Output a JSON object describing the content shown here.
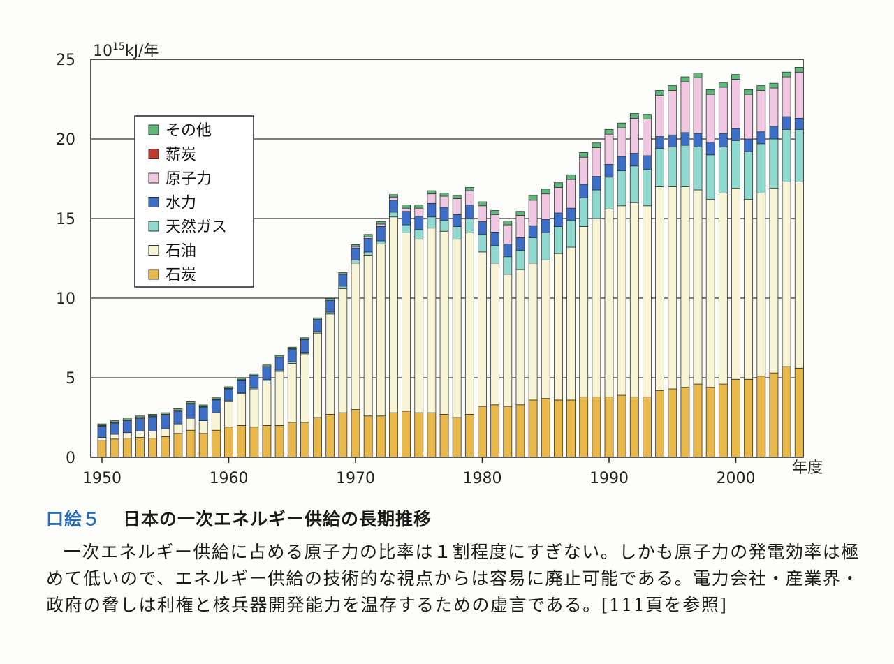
{
  "chart_data": {
    "type": "bar",
    "stacked": true,
    "title": "日本の一次エネルギー供給の長期推移",
    "ylabel_base": "10",
    "ylabel_exp": "15",
    "ylabel_unit": "kJ/年",
    "xlabel": "年度",
    "ylim": [
      0,
      25
    ],
    "yticks": [
      "0",
      "5",
      "10",
      "15",
      "20",
      "25"
    ],
    "xticks": [
      "1950",
      "1960",
      "1970",
      "1980",
      "1990",
      "2000"
    ],
    "legend_position": "upper-left",
    "categories": [
      "1950",
      "1951",
      "1952",
      "1953",
      "1954",
      "1955",
      "1956",
      "1957",
      "1958",
      "1959",
      "1960",
      "1961",
      "1962",
      "1963",
      "1964",
      "1965",
      "1966",
      "1967",
      "1968",
      "1969",
      "1970",
      "1971",
      "1972",
      "1973",
      "1974",
      "1975",
      "1976",
      "1977",
      "1978",
      "1979",
      "1980",
      "1981",
      "1982",
      "1983",
      "1984",
      "1985",
      "1986",
      "1987",
      "1988",
      "1989",
      "1990",
      "1991",
      "1992",
      "1993",
      "1994",
      "1995",
      "1996",
      "1997",
      "1998",
      "1999",
      "2000",
      "2001",
      "2002",
      "2003",
      "2004",
      "2005"
    ],
    "series": [
      {
        "name": "石炭",
        "color": "#e8b84a",
        "values": [
          1.05,
          1.15,
          1.2,
          1.25,
          1.2,
          1.3,
          1.5,
          1.7,
          1.5,
          1.7,
          1.9,
          2.0,
          1.9,
          2.0,
          2.0,
          2.2,
          2.2,
          2.5,
          2.7,
          2.8,
          3.0,
          2.6,
          2.6,
          2.8,
          2.9,
          2.8,
          2.8,
          2.7,
          2.5,
          2.7,
          3.2,
          3.3,
          3.2,
          3.3,
          3.6,
          3.7,
          3.6,
          3.6,
          3.8,
          3.8,
          3.8,
          3.9,
          3.8,
          3.8,
          4.2,
          4.3,
          4.4,
          4.6,
          4.4,
          4.6,
          4.9,
          4.9,
          5.1,
          5.3,
          5.7,
          5.6
        ]
      },
      {
        "name": "石油",
        "color": "#f8f4d6",
        "values": [
          0.2,
          0.3,
          0.35,
          0.4,
          0.45,
          0.5,
          0.6,
          0.75,
          0.8,
          1.1,
          1.6,
          2.0,
          2.4,
          2.8,
          3.4,
          3.7,
          4.3,
          5.3,
          6.3,
          7.8,
          9.2,
          10.1,
          10.8,
          12.3,
          11.2,
          10.9,
          11.6,
          11.5,
          11.2,
          11.4,
          9.7,
          8.9,
          8.3,
          8.5,
          8.6,
          8.7,
          9.2,
          9.6,
          10.7,
          11.2,
          11.8,
          11.9,
          12.2,
          12.0,
          12.8,
          12.7,
          12.6,
          12.2,
          11.8,
          12.0,
          12.0,
          11.3,
          11.5,
          11.6,
          11.6,
          11.7
        ]
      },
      {
        "name": "天然ガス",
        "color": "#8fd9cf",
        "values": [
          0.0,
          0.0,
          0.0,
          0.0,
          0.0,
          0.0,
          0.0,
          0.0,
          0.0,
          0.0,
          0.05,
          0.05,
          0.08,
          0.08,
          0.08,
          0.1,
          0.1,
          0.1,
          0.12,
          0.15,
          0.2,
          0.2,
          0.2,
          0.3,
          0.5,
          0.6,
          0.7,
          0.7,
          0.8,
          0.9,
          1.1,
          1.1,
          1.1,
          1.2,
          1.6,
          1.7,
          1.7,
          1.7,
          1.8,
          1.8,
          2.0,
          2.2,
          2.3,
          2.3,
          2.4,
          2.5,
          2.6,
          2.7,
          2.8,
          2.9,
          3.0,
          3.0,
          3.1,
          3.1,
          3.3,
          3.3
        ]
      },
      {
        "name": "水力",
        "color": "#3d6fc8",
        "values": [
          0.7,
          0.7,
          0.75,
          0.8,
          0.9,
          0.85,
          0.8,
          0.9,
          0.85,
          0.8,
          0.75,
          0.8,
          0.75,
          0.8,
          0.8,
          0.8,
          0.8,
          0.75,
          0.75,
          0.75,
          0.75,
          0.85,
          0.9,
          0.75,
          0.85,
          0.85,
          0.85,
          0.8,
          0.75,
          0.85,
          0.8,
          0.85,
          0.8,
          0.8,
          0.75,
          0.85,
          0.85,
          0.75,
          0.85,
          0.85,
          0.8,
          0.9,
          0.8,
          0.85,
          0.75,
          0.75,
          0.8,
          0.85,
          0.8,
          0.85,
          0.75,
          0.8,
          0.75,
          0.8,
          0.8,
          0.7
        ]
      },
      {
        "name": "原子力",
        "color": "#f0c8e2",
        "values": [
          0,
          0,
          0,
          0,
          0,
          0,
          0,
          0,
          0,
          0,
          0,
          0,
          0,
          0,
          0,
          0,
          0,
          0,
          0,
          0,
          0.1,
          0.1,
          0.15,
          0.2,
          0.2,
          0.5,
          0.6,
          0.7,
          1.0,
          0.9,
          1.0,
          1.1,
          1.2,
          1.4,
          1.6,
          1.6,
          1.6,
          1.8,
          1.7,
          1.8,
          1.9,
          1.8,
          2.2,
          2.3,
          2.6,
          2.8,
          3.2,
          3.5,
          3.0,
          2.9,
          3.1,
          2.8,
          2.6,
          2.4,
          2.5,
          2.9
        ]
      },
      {
        "name": "薪炭",
        "color": "#c0392b",
        "values": [
          0.05,
          0.05,
          0.05,
          0.05,
          0.05,
          0.05,
          0.05,
          0.04,
          0.04,
          0.04,
          0.03,
          0.03,
          0.02,
          0.02,
          0.02,
          0.02,
          0.01,
          0.01,
          0.01,
          0.01,
          0.01,
          0,
          0,
          0,
          0,
          0,
          0,
          0,
          0,
          0,
          0,
          0,
          0,
          0,
          0,
          0,
          0,
          0,
          0,
          0,
          0,
          0,
          0,
          0,
          0,
          0,
          0,
          0,
          0,
          0,
          0,
          0,
          0,
          0,
          0,
          0
        ]
      },
      {
        "name": "その他",
        "color": "#5db87a",
        "values": [
          0.1,
          0.1,
          0.12,
          0.1,
          0.1,
          0.1,
          0.1,
          0.1,
          0.1,
          0.1,
          0.1,
          0.1,
          0.1,
          0.1,
          0.1,
          0.1,
          0.1,
          0.1,
          0.1,
          0.1,
          0.1,
          0.15,
          0.15,
          0.15,
          0.2,
          0.2,
          0.2,
          0.2,
          0.2,
          0.2,
          0.25,
          0.25,
          0.25,
          0.25,
          0.3,
          0.3,
          0.3,
          0.3,
          0.3,
          0.3,
          0.3,
          0.3,
          0.3,
          0.3,
          0.3,
          0.3,
          0.3,
          0.3,
          0.3,
          0.3,
          0.3,
          0.3,
          0.3,
          0.3,
          0.3,
          0.3
        ]
      }
    ],
    "legend_order": [
      "その他",
      "薪炭",
      "原子力",
      "水力",
      "天然ガス",
      "石油",
      "石炭"
    ]
  },
  "caption": {
    "number": "口絵５",
    "title": "日本の一次エネルギー供給の長期推移",
    "body": "一次エネルギー供給に占める原子力の比率は１割程度にすぎない。しかも原子力の発電効率は極めて低いので、エネルギー供給の技術的な視点からは容易に廃止可能である。電力会社・産業界・政府の脅しは利権と核兵器開発能力を温存するための虚言である。[111頁を参照]"
  }
}
